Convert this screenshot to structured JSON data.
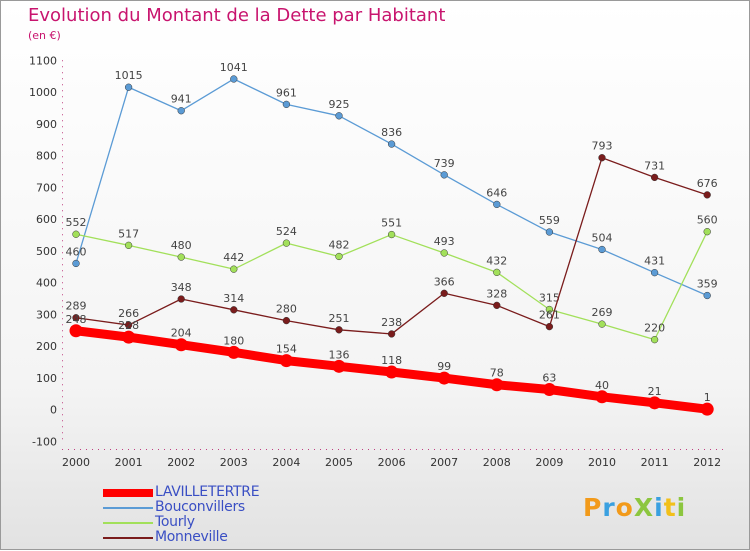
{
  "title": "Evolution du Montant de la Dette par Habitant",
  "subtitle": "(en €)",
  "logo_text": "ProXiti",
  "chart_data": {
    "type": "line",
    "x": [
      "2000",
      "2001",
      "2002",
      "2003",
      "2004",
      "2005",
      "2006",
      "2007",
      "2008",
      "2009",
      "2010",
      "2011",
      "2012"
    ],
    "ylim": [
      -100,
      1100
    ],
    "yticks": [
      "-100",
      "0",
      "100",
      "200",
      "300",
      "400",
      "500",
      "600",
      "700",
      "800",
      "900",
      "1000",
      "1100"
    ],
    "grid": false,
    "legend_position": "bottom-left",
    "series": [
      {
        "name": "LAVILLETERTRE",
        "color": "#ff0000",
        "values": [
          248,
          228,
          204,
          180,
          154,
          136,
          118,
          99,
          78,
          63,
          40,
          21,
          1
        ]
      },
      {
        "name": "Bouconvillers",
        "color": "#5b9bd5",
        "values": [
          460,
          1015,
          941,
          1041,
          961,
          925,
          836,
          739,
          646,
          559,
          504,
          431,
          359
        ]
      },
      {
        "name": "Tourly",
        "color": "#a2e05a",
        "values": [
          552,
          517,
          480,
          442,
          524,
          482,
          551,
          493,
          432,
          315,
          269,
          220,
          560
        ]
      },
      {
        "name": "Monneville",
        "color": "#7a1c1c",
        "values": [
          289,
          266,
          348,
          314,
          280,
          251,
          238,
          366,
          328,
          261,
          793,
          731,
          676
        ]
      }
    ]
  }
}
